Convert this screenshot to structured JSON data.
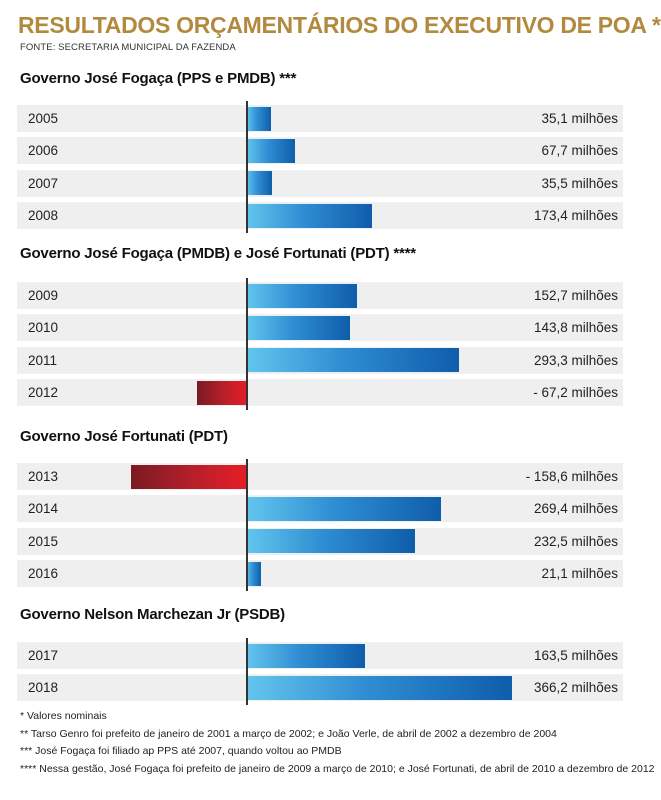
{
  "header": {
    "title": "RESULTADOS ORÇAMENTÁRIOS DO EXECUTIVO DE POA *",
    "source": "FONTE: SECRETARIA MUNICIPAL DA FAZENDA"
  },
  "chart_data": {
    "type": "bar",
    "orientation": "horizontal",
    "title": "RESULTADOS ORÇAMENTÁRIOS DO EXECUTIVO DE POA *",
    "unit": "milhões",
    "groups": [
      {
        "name": "Governo José Fogaça (PPS e PMDB) ***",
        "rows": [
          {
            "year": "2005",
            "value": 35.1,
            "label": "35,1 milhões"
          },
          {
            "year": "2006",
            "value": 67.7,
            "label": "67,7 milhões"
          },
          {
            "year": "2007",
            "value": 35.5,
            "label": "35,5 milhões"
          },
          {
            "year": "2008",
            "value": 173.4,
            "label": "173,4 milhões"
          }
        ]
      },
      {
        "name": "Governo José Fogaça (PMDB) e José Fortunati (PDT) ****",
        "rows": [
          {
            "year": "2009",
            "value": 152.7,
            "label": "152,7 milhões"
          },
          {
            "year": "2010",
            "value": 143.8,
            "label": "143,8 milhões"
          },
          {
            "year": "2011",
            "value": 293.3,
            "label": "293,3 milhões"
          },
          {
            "year": "2012",
            "value": -67.2,
            "label": "- 67,2 milhões"
          }
        ]
      },
      {
        "name": "Governo José Fortunati (PDT)",
        "rows": [
          {
            "year": "2013",
            "value": -158.6,
            "label": "- 158,6 milhões"
          },
          {
            "year": "2014",
            "value": 269.4,
            "label": "269,4 milhões"
          },
          {
            "year": "2015",
            "value": 232.5,
            "label": "232,5 milhões"
          },
          {
            "year": "2016",
            "value": 21.1,
            "label": "21,1 milhões"
          }
        ]
      },
      {
        "name": "Governo Nelson Marchezan Jr (PSDB)",
        "rows": [
          {
            "year": "2017",
            "value": 163.5,
            "label": "163,5 milhões"
          },
          {
            "year": "2018",
            "value": 366.2,
            "label": "366,2 milhões"
          }
        ]
      }
    ],
    "colors": {
      "positive": [
        "#63c6ee",
        "#2f8ed3",
        "#0f5dab"
      ],
      "negative": [
        "#7a1a22",
        "#b81f2b",
        "#e41e26"
      ]
    }
  },
  "footnotes": [
    "* Valores nominais",
    "** Tarso Genro  foi prefeito de janeiro de 2001 a março de 2002; e João Verle, de abril de 2002 a dezembro de 2004",
    "*** José Fogaça foi filiado ap PPS até 2007, quando voltou ao PMDB",
    "**** Nessa gestão, José Fogaça foi prefeito de janeiro de 2009 a março de 2010; e José Fortunati, de abril de 2010 a dezembro de 2012"
  ]
}
